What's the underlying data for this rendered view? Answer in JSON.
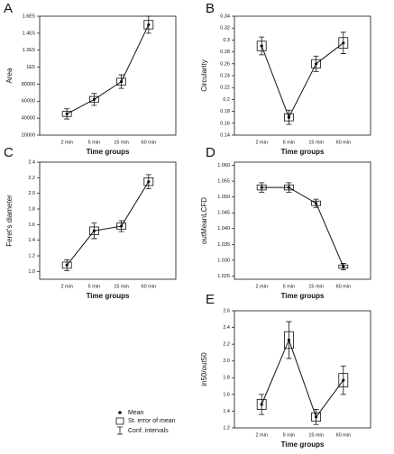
{
  "chart_data": [
    {
      "type": "line",
      "label": "A",
      "ylabel": "Area",
      "xlabel": "Time groups",
      "categories": [
        "2 min",
        "5 min",
        "15 min",
        "60 min"
      ],
      "values": [
        45000,
        62000,
        83000,
        150000
      ],
      "se": [
        3000,
        3500,
        4000,
        5000
      ],
      "ci": [
        6000,
        7000,
        8000,
        10000
      ],
      "ylim": [
        20000,
        160000
      ],
      "yticks": [
        {
          "value": 20000,
          "label": "20000"
        },
        {
          "value": 40000,
          "label": "40000"
        },
        {
          "value": 60000,
          "label": "60000"
        },
        {
          "value": 80000,
          "label": "80000"
        },
        {
          "value": 100000,
          "label": "1E5"
        },
        {
          "value": 120000,
          "label": "1.2E5"
        },
        {
          "value": 140000,
          "label": "1.4E5"
        },
        {
          "value": 160000,
          "label": "1.6E5"
        }
      ]
    },
    {
      "type": "line",
      "label": "B",
      "ylabel": "Circularity",
      "xlabel": "Time groups",
      "categories": [
        "2 min",
        "5 min",
        "15 min",
        "60 min"
      ],
      "values": [
        0.29,
        0.17,
        0.26,
        0.295
      ],
      "se": [
        0.008,
        0.006,
        0.007,
        0.009
      ],
      "ci": [
        0.015,
        0.012,
        0.013,
        0.018
      ],
      "ylim": [
        0.14,
        0.34
      ],
      "yticks": [
        0.14,
        0.16,
        0.18,
        0.2,
        0.22,
        0.24,
        0.26,
        0.28,
        0.3,
        0.32,
        0.34
      ]
    },
    {
      "type": "line",
      "label": "C",
      "ylabel": "Feret's diameter",
      "xlabel": "Time groups",
      "categories": [
        "2 min",
        "5 min",
        "15 min",
        "60 min"
      ],
      "values": [
        1.08,
        1.52,
        1.58,
        2.15
      ],
      "se": [
        0.04,
        0.05,
        0.04,
        0.05
      ],
      "ci": [
        0.07,
        0.1,
        0.07,
        0.09
      ],
      "ylim": [
        0.9,
        2.4
      ],
      "yticks": [
        {
          "value": 1.0,
          "label": "1.0"
        },
        1.2,
        1.4,
        1.6,
        1.8,
        {
          "value": 2.0,
          "label": "2.0"
        },
        2.2,
        2.4
      ]
    },
    {
      "type": "line",
      "label": "D",
      "ylabel": "outMeanLCFD",
      "xlabel": "Time groups",
      "categories": [
        "2 min",
        "5 min",
        "15 min",
        "60 min"
      ],
      "values": [
        1.053,
        1.053,
        1.048,
        1.028
      ],
      "se": [
        0.0008,
        0.0008,
        0.0007,
        0.0005
      ],
      "ci": [
        0.0015,
        0.0015,
        0.0013,
        0.001
      ],
      "ylim": [
        1.024,
        1.061
      ],
      "yticks": [
        1.025,
        {
          "value": 1.03,
          "label": "1.030"
        },
        1.035,
        {
          "value": 1.04,
          "label": "1.040"
        },
        1.045,
        {
          "value": 1.05,
          "label": "1.050"
        },
        1.055,
        {
          "value": 1.06,
          "label": "1.060"
        }
      ]
    },
    {
      "type": "line",
      "label": "E",
      "ylabel": "in50/out50",
      "xlabel": "Time groups",
      "categories": [
        "2 min",
        "5 min",
        "15 min",
        "60 min"
      ],
      "values": [
        1.48,
        2.25,
        1.33,
        1.77
      ],
      "se": [
        0.06,
        0.1,
        0.05,
        0.08
      ],
      "ci": [
        0.12,
        0.22,
        0.09,
        0.17
      ],
      "ylim": [
        1.2,
        2.6
      ],
      "yticks": [
        1.2,
        1.4,
        1.6,
        1.8,
        {
          "value": 2.0,
          "label": "2.0"
        },
        2.2,
        2.4,
        2.6
      ]
    }
  ],
  "legend": [
    "Mean",
    "St. error of mean",
    "Conf. intervals"
  ]
}
